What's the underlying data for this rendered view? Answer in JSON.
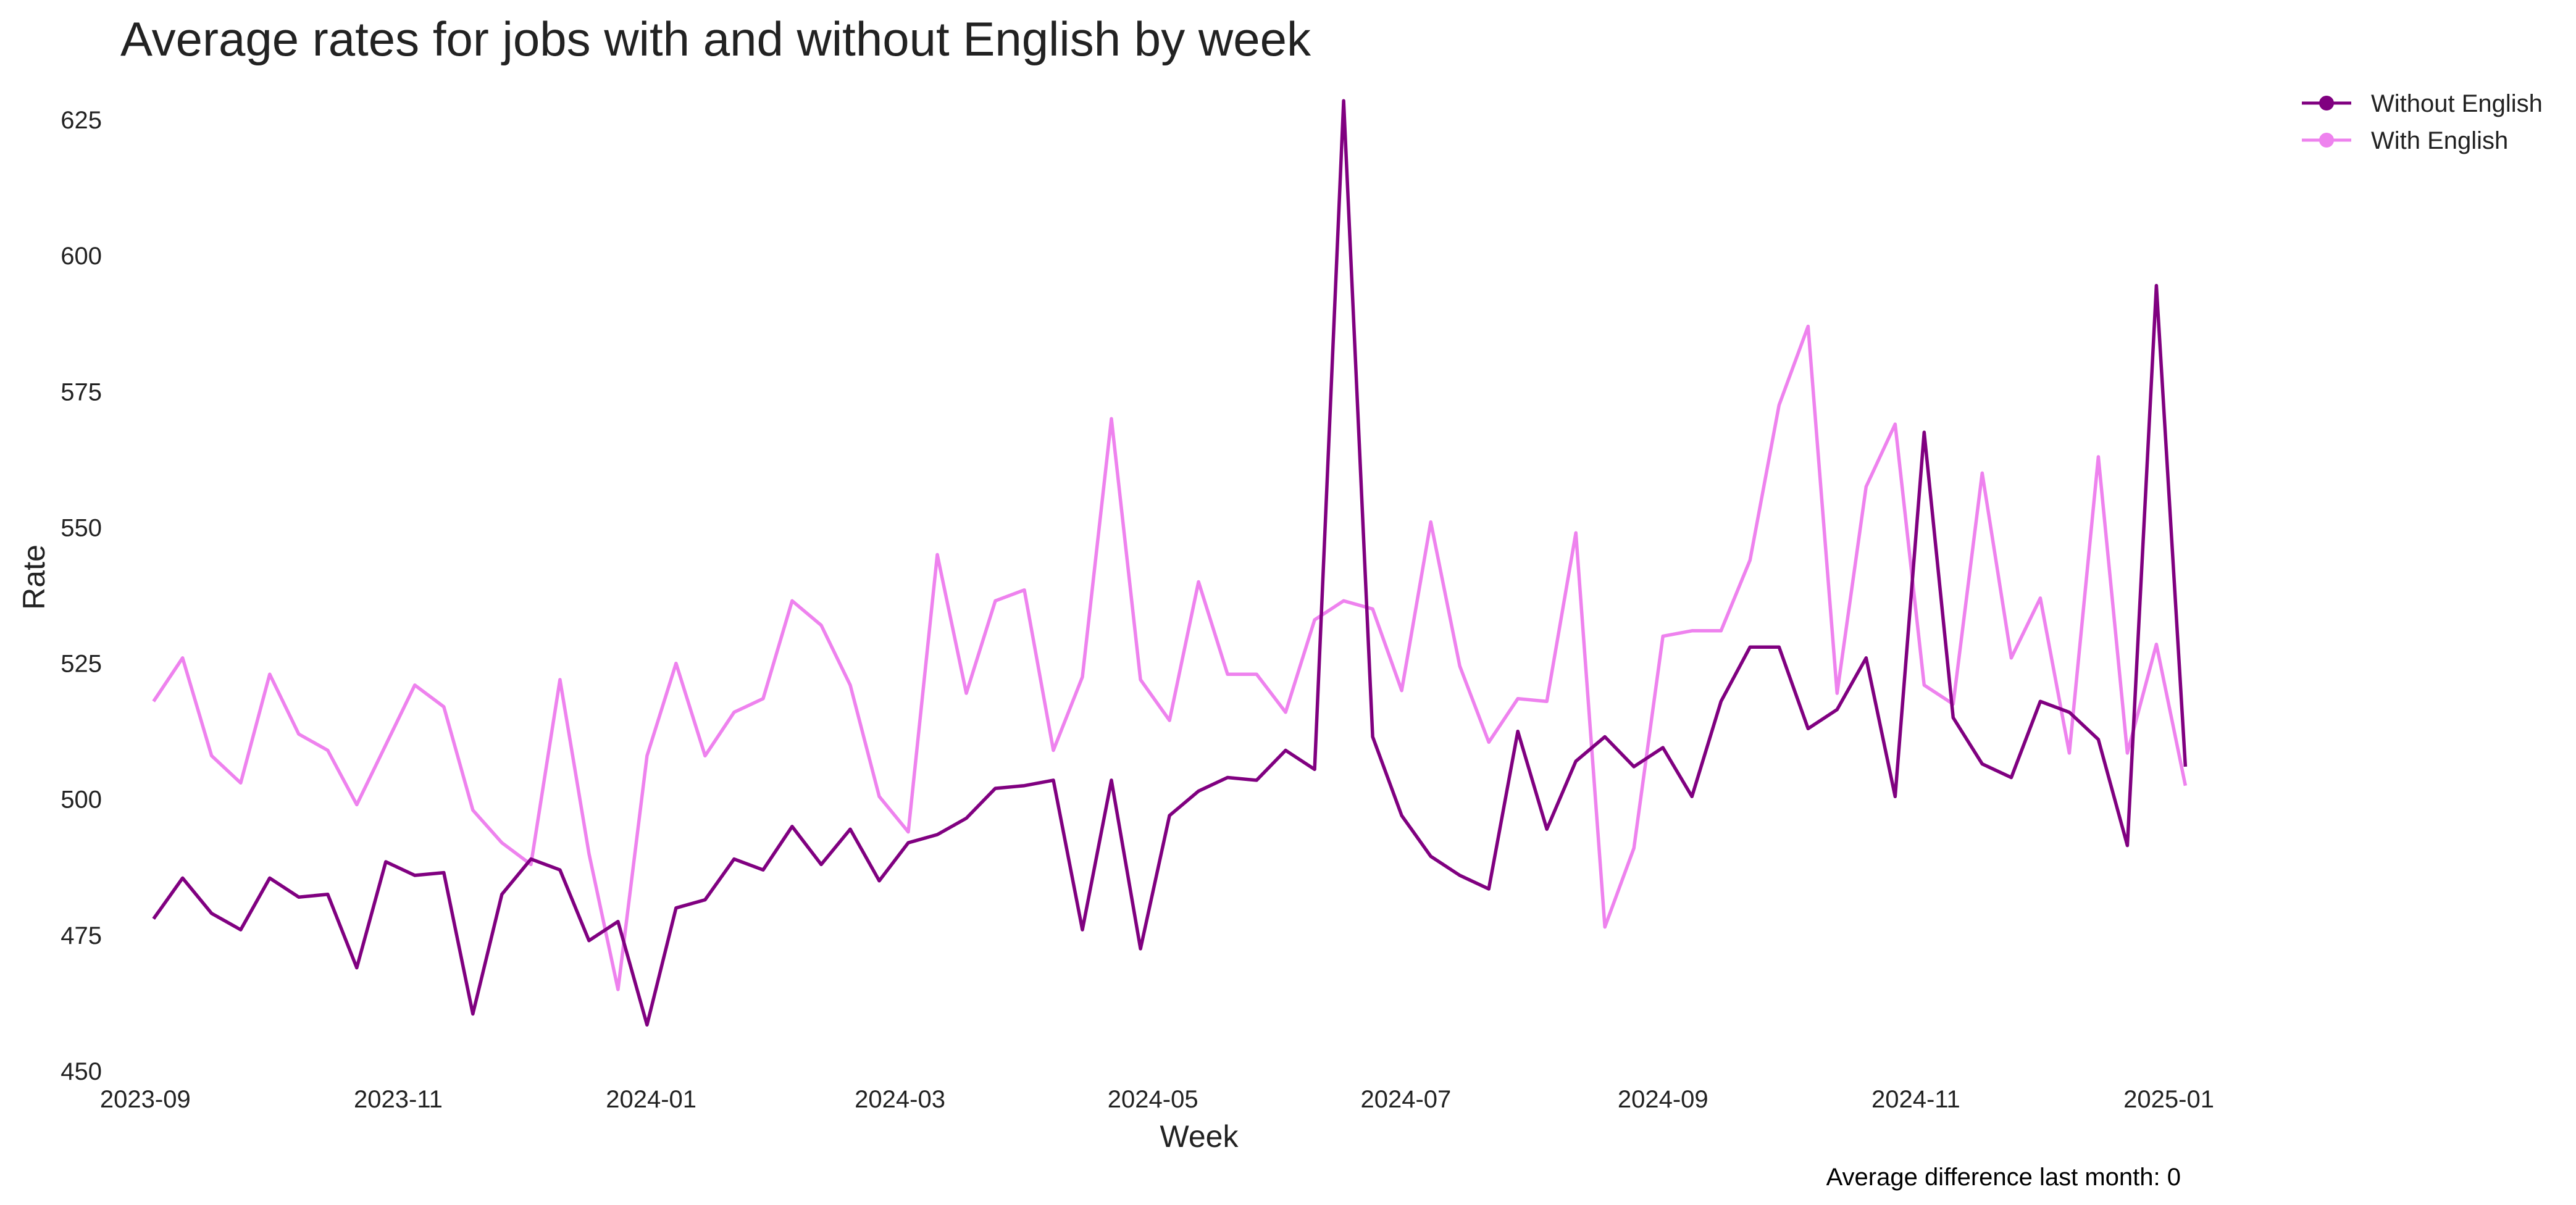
{
  "chart_data": {
    "type": "line",
    "title": "Average rates for jobs with and without English by week",
    "xlabel": "Week",
    "ylabel": "Rate",
    "ylim": [
      450,
      630
    ],
    "yticks": [
      450,
      475,
      500,
      525,
      550,
      575,
      600,
      625
    ],
    "xlim": [
      "2023-08-26",
      "2025-01-17"
    ],
    "xticks": [
      "2023-09",
      "2023-11",
      "2024-01",
      "2024-03",
      "2024-05",
      "2024-07",
      "2024-09",
      "2024-11",
      "2025-01"
    ],
    "grid": false,
    "legend_position": "top-right",
    "annotation": "Average difference last month: 0",
    "x_start": "2023-09-03",
    "x_step_days": 7,
    "series": [
      {
        "name": "Without English",
        "color": "#800080",
        "values": [
          478,
          485.5,
          479,
          476,
          485.5,
          482,
          482.5,
          469,
          488.5,
          486,
          486.5,
          460.5,
          482.5,
          489,
          487,
          474,
          477.5,
          458.5,
          480,
          481.5,
          489,
          487,
          495,
          488,
          494.5,
          485,
          492,
          493.5,
          496.5,
          502,
          502.5,
          503.5,
          476,
          503.5,
          472.5,
          497,
          501.5,
          504,
          503.5,
          509,
          505.5,
          628.5,
          511.5,
          497,
          489.5,
          486,
          483.5,
          512.5,
          494.5,
          507,
          511.5,
          506,
          509.5,
          500.5,
          518,
          528,
          528,
          513,
          516.5,
          526,
          500.5,
          567.5,
          515,
          506.5,
          504,
          518,
          516,
          511,
          491.5,
          594.5,
          506
        ]
      },
      {
        "name": "With English",
        "color": "#ee82ee",
        "values": [
          518,
          526,
          508,
          503,
          523,
          512,
          509,
          499,
          510,
          521,
          517,
          498,
          492,
          488,
          522,
          490,
          465,
          508,
          525,
          508,
          516,
          518.5,
          536.5,
          532,
          521,
          500.5,
          494,
          545,
          519.5,
          536.5,
          538.5,
          509,
          522.5,
          570,
          522,
          514.5,
          540,
          523,
          523,
          516,
          533,
          536.5,
          535,
          520,
          551,
          524.5,
          510.5,
          518.5,
          518,
          549,
          476.5,
          491,
          530,
          531,
          531,
          544,
          572.5,
          587,
          519.5,
          557.5,
          569,
          521,
          517.5,
          560,
          526,
          537,
          508.5,
          563,
          508.5,
          528.5,
          502.5
        ]
      }
    ]
  }
}
